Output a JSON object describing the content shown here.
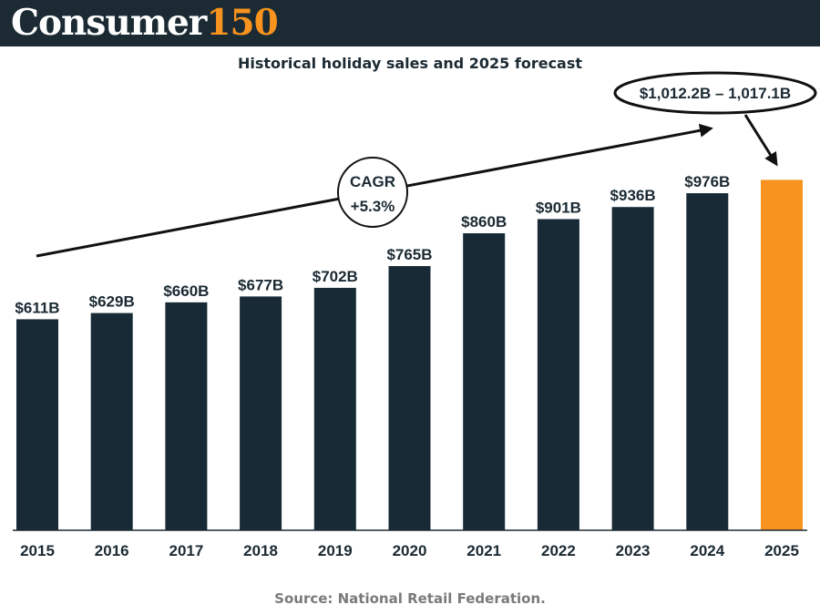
{
  "brand": {
    "name_main": "Consumer",
    "name_num": "150"
  },
  "colors": {
    "header_bg": "#1b2a33",
    "bar": "#172a36",
    "forecast_bar": "#f7931e",
    "accent": "#f7931e"
  },
  "chart_data": {
    "type": "bar",
    "title": "Historical holiday sales and 2025 forecast",
    "categories": [
      "2015",
      "2016",
      "2017",
      "2018",
      "2019",
      "2020",
      "2021",
      "2022",
      "2023",
      "2024",
      "2025"
    ],
    "values": [
      611,
      629,
      660,
      677,
      702,
      765,
      860,
      901,
      936,
      976,
      1014.65
    ],
    "labels": [
      "$611B",
      "$629B",
      "$660B",
      "$677B",
      "$702B",
      "$765B",
      "$860B",
      "$901B",
      "$936B",
      "$976B",
      ""
    ],
    "forecast_index": 10,
    "forecast_range": [
      1012.2,
      1017.1
    ],
    "forecast_label": "$1,012.2B – 1,017.1B",
    "cagr_line1": "CAGR",
    "cagr_line2": "+5.3%",
    "units": "billions USD",
    "ylim": [
      0,
      1240
    ]
  },
  "source": "Source: National Retail Federation."
}
